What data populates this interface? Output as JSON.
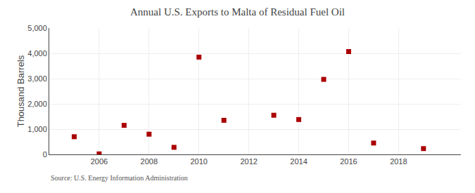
{
  "chart_data": {
    "type": "scatter",
    "title": "Annual U.S. Exports to Malta of Residual Fuel Oil",
    "ylabel": "Thousand Barrels",
    "source": "Source: U.S. Energy Information Administration",
    "x": [
      2005,
      2006,
      2007,
      2008,
      2009,
      2010,
      2011,
      2013,
      2014,
      2015,
      2016,
      2017,
      2019
    ],
    "values": [
      700,
      20,
      1150,
      800,
      280,
      3850,
      1350,
      1550,
      1380,
      2970,
      4070,
      450,
      230
    ],
    "color": "#aa0000",
    "marker": "square",
    "xlim": [
      2004.0,
      2020.5
    ],
    "ylim": [
      0,
      5000
    ],
    "xticks": [
      2006,
      2008,
      2010,
      2012,
      2014,
      2016,
      2018
    ],
    "yticks": [
      0,
      {
        "value": 1000,
        "label": "1,000"
      },
      {
        "value": 2000,
        "label": "2,000"
      },
      {
        "value": 3000,
        "label": "3,000"
      },
      {
        "value": 4000,
        "label": "4,000"
      },
      {
        "value": 5000,
        "label": "5,000"
      }
    ],
    "grid": true
  }
}
